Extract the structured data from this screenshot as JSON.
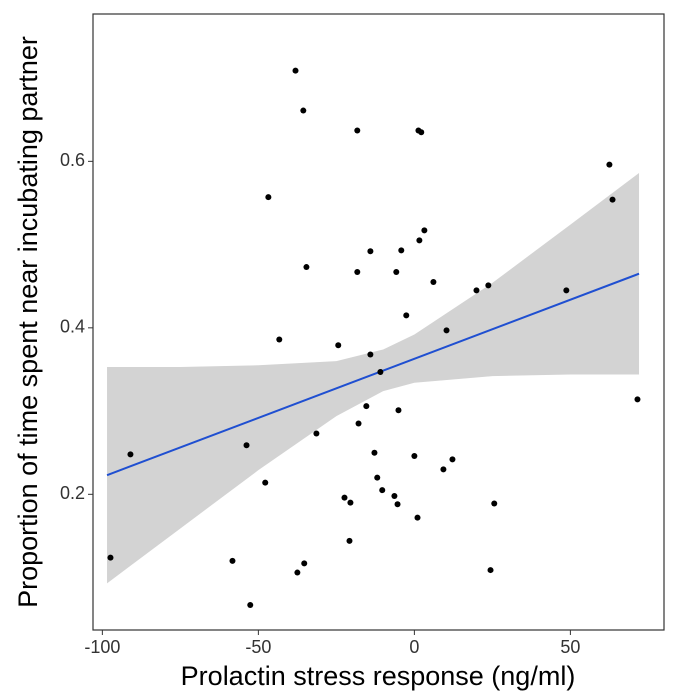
{
  "chart_data": {
    "type": "scatter",
    "x_label": "Prolactin stress response (ng/ml)",
    "y_label": "Proportion of time spent near incubating partner",
    "series": [
      {
        "color": "#000000",
        "x": [
          -97.4,
          -91.0,
          -58.3,
          -52.6,
          -53.8,
          -47.8,
          -46.8,
          -43.3,
          -38.1,
          -37.5,
          -35.3,
          -35.6,
          -34.6,
          -31.4,
          -24.4,
          -22.4,
          -20.5,
          -20.8,
          -18.3,
          -18.3,
          -17.9,
          -15.4,
          -14.1,
          -14.1,
          -12.8,
          -11.9,
          -10.9,
          -10.3,
          -6.4,
          -5.8,
          -5.4,
          -5.1,
          -4.2,
          -2.6,
          0.0,
          1.0,
          1.3,
          2.2,
          1.6,
          3.2,
          6.1,
          9.3,
          10.3,
          12.2,
          19.9,
          23.7,
          24.4,
          25.6,
          48.7,
          62.5,
          63.5,
          71.5
        ],
        "values": [
          0.124,
          0.248,
          0.12,
          0.067,
          0.259,
          0.214,
          0.557,
          0.386,
          0.709,
          0.106,
          0.117,
          0.661,
          0.473,
          0.273,
          0.379,
          0.196,
          0.19,
          0.144,
          0.637,
          0.467,
          0.285,
          0.306,
          0.492,
          0.368,
          0.25,
          0.22,
          0.347,
          0.205,
          0.198,
          0.467,
          0.188,
          0.301,
          0.493,
          0.415,
          0.246,
          0.172,
          0.637,
          0.635,
          0.505,
          0.517,
          0.455,
          0.23,
          0.397,
          0.242,
          0.445,
          0.451,
          0.109,
          0.189,
          0.445,
          0.596,
          0.554,
          0.314
        ]
      }
    ],
    "fit": {
      "color": "#1f4fd1",
      "x": [
        -98.5,
        72
      ],
      "values": [
        0.223,
        0.465
      ]
    },
    "band": {
      "color": "#d3d3d3",
      "x": [
        -98.5,
        -75,
        -50,
        -25,
        -10,
        0,
        25,
        50,
        72
      ],
      "lower": [
        0.093,
        0.159,
        0.229,
        0.294,
        0.324,
        0.334,
        0.342,
        0.344,
        0.344
      ],
      "upper": [
        0.353,
        0.353,
        0.355,
        0.36,
        0.374,
        0.392,
        0.454,
        0.524,
        0.586
      ]
    },
    "xlim": [
      -103,
      80
    ],
    "ylim": [
      0.037,
      0.777
    ],
    "xticks": [
      -100,
      -50,
      0,
      50
    ],
    "yticks": [
      0.2,
      0.4,
      0.6
    ],
    "grid": false
  }
}
